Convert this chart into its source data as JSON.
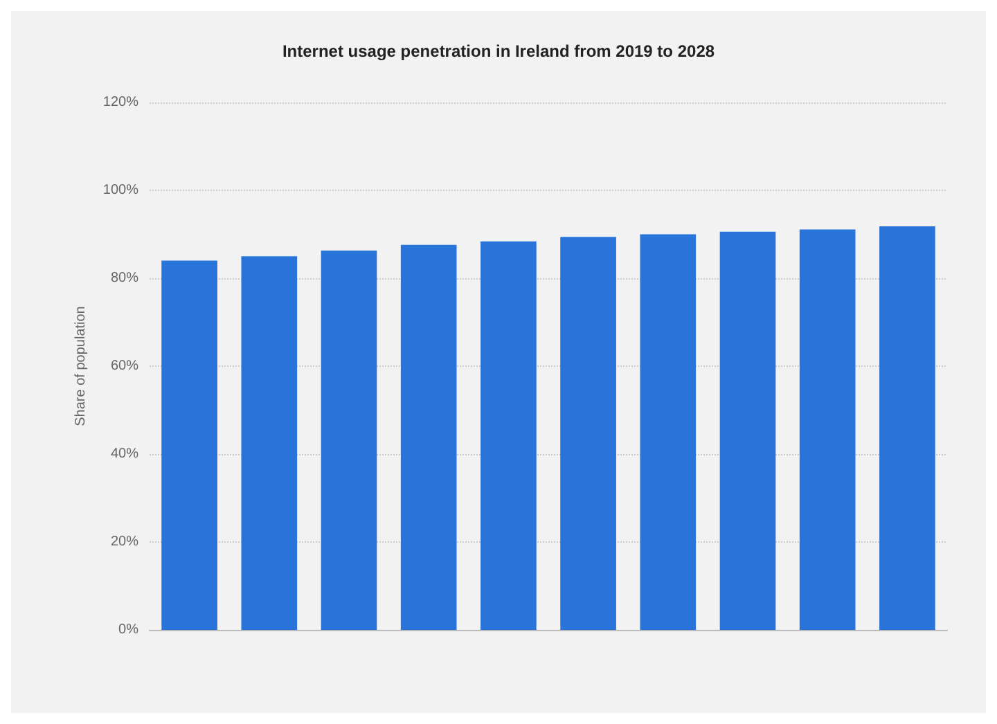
{
  "chart_data": {
    "type": "bar",
    "title": "Internet usage penetration in Ireland from 2019 to 2028",
    "ylabel": "Share of population",
    "categories": [
      null,
      null,
      null,
      null,
      null,
      null,
      null,
      null,
      null,
      null
    ],
    "values": [
      84.0,
      85.0,
      86.3,
      87.6,
      88.4,
      89.4,
      90.0,
      90.6,
      91.1,
      91.8
    ],
    "color": "#2874d9",
    "ylim": [
      0,
      120
    ],
    "yticks": [
      {
        "value": 0,
        "label": "0%"
      },
      {
        "value": 20,
        "label": "20%"
      },
      {
        "value": 40,
        "label": "40%"
      },
      {
        "value": 60,
        "label": "60%"
      },
      {
        "value": 80,
        "label": "80%"
      },
      {
        "value": 100,
        "label": "100%"
      },
      {
        "value": 120,
        "label": "120%"
      }
    ],
    "grid": "y"
  }
}
